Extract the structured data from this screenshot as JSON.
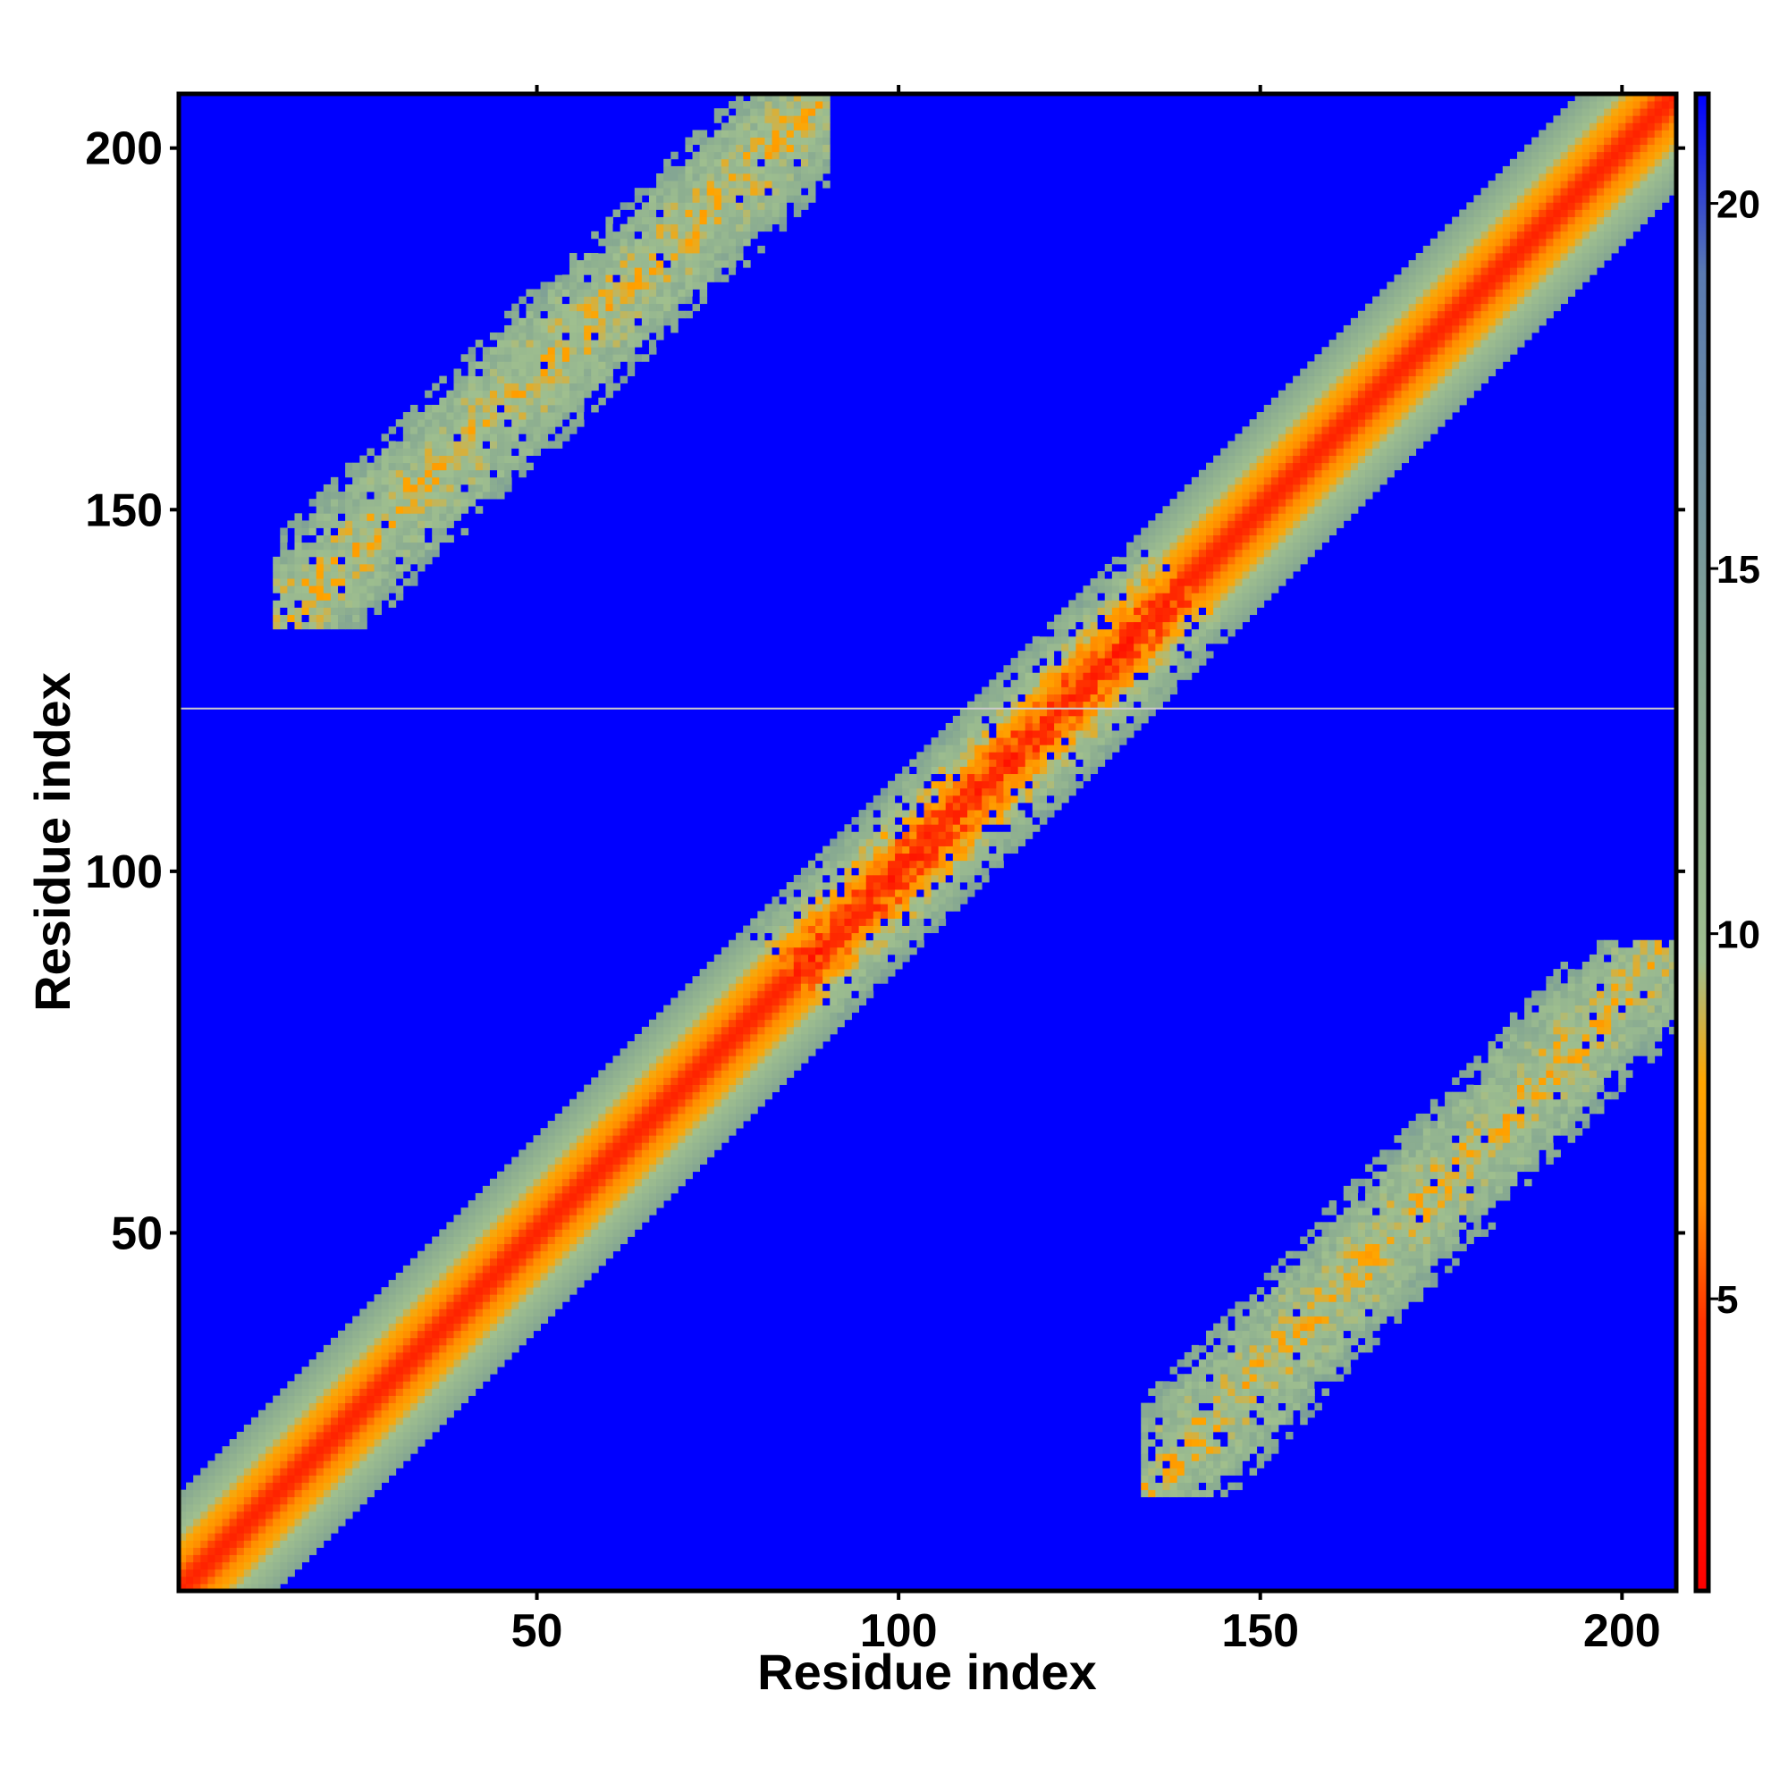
{
  "chart_data": {
    "type": "heatmap",
    "title": "",
    "xlabel": "Residue index",
    "ylabel": "Residue index",
    "x_range": [
      1,
      207
    ],
    "y_range": [
      1,
      207
    ],
    "x_ticks": [
      50,
      100,
      150,
      200
    ],
    "y_ticks": [
      50,
      100,
      150,
      200
    ],
    "colorbar": {
      "range": [
        1,
        21.5
      ],
      "ticks": [
        5,
        10,
        15,
        20
      ],
      "colors": [
        "#ff0000",
        "#ff3300",
        "#ff8c00",
        "#ffa500",
        "#9fbf8f",
        "#87a991",
        "#6f8fa0",
        "#5a7ab0",
        "#0000ff"
      ],
      "stops": [
        0.0,
        0.18,
        0.26,
        0.34,
        0.42,
        0.6,
        0.75,
        0.88,
        1.0
      ]
    },
    "grid": false,
    "legend": "colorbar-right",
    "background_value": 21.5,
    "features": [
      {
        "name": "main diagonal",
        "kind": "diagonal",
        "start": 1,
        "end": 207,
        "center_distance": 3.5,
        "edge_distance": 13.5,
        "half_width": 13
      },
      {
        "name": "upper-left contact band",
        "kind": "antidiagonal-offset",
        "x_start": 14,
        "x_end": 90,
        "y_start": 134,
        "y_end": 207,
        "center_distance": 9,
        "half_width": 9
      },
      {
        "name": "lower-right contact band",
        "kind": "antidiagonal-offset",
        "x_start": 134,
        "x_end": 207,
        "y_start": 14,
        "y_end": 90,
        "center_distance": 9,
        "half_width": 9
      }
    ],
    "reference_line": {
      "axis": "y",
      "value": 122.5,
      "color": "#cccccc"
    }
  }
}
